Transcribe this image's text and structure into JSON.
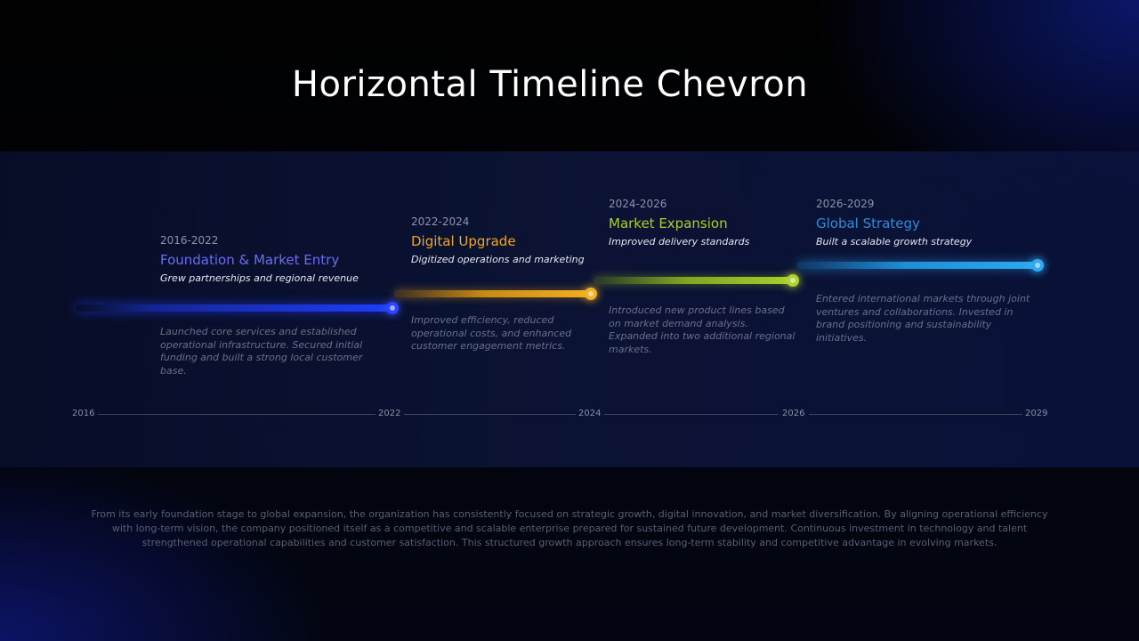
{
  "title": "Horizontal Timeline Chevron",
  "phases": [
    {
      "range": "2016-2022",
      "title": "Foundation & Market Entry",
      "subtitle": "Grew partnerships and regional revenue",
      "description": "Launched core services and established operational infrastructure. Secured initial funding and built a strong local customer base.",
      "color": "#1f3dff"
    },
    {
      "range": "2022-2024",
      "title": "Digital Upgrade",
      "subtitle": "Digitized operations and marketing",
      "description": "Improved efficiency, reduced operational costs, and enhanced customer engagement metrics.",
      "color": "#f0a81a"
    },
    {
      "range": "2024-2026",
      "title": "Market Expansion",
      "subtitle": "Improved delivery standards",
      "description": "Introduced new product lines based on market demand analysis. Expanded into two additional regional markets.",
      "color": "#a8d02a"
    },
    {
      "range": "2026-2029",
      "title": "Global Strategy",
      "subtitle": "Built a scalable growth strategy",
      "description": "Entered international markets through joint ventures and collaborations. Invested in brand positioning and sustainability initiatives.",
      "color": "#29a6ee"
    }
  ],
  "axis": {
    "years": [
      "2016",
      "2022",
      "2024",
      "2026",
      "2029"
    ]
  },
  "footer": "From its early foundation stage to global expansion, the organization has consistently focused on strategic growth, digital innovation, and market diversification. By aligning operational efficiency with long-term vision, the company positioned itself as a competitive and scalable enterprise prepared for sustained future development. Continuous investment in technology and talent strengthened operational capabilities and customer satisfaction. This structured growth approach ensures long-term stability and competitive advantage in evolving markets."
}
